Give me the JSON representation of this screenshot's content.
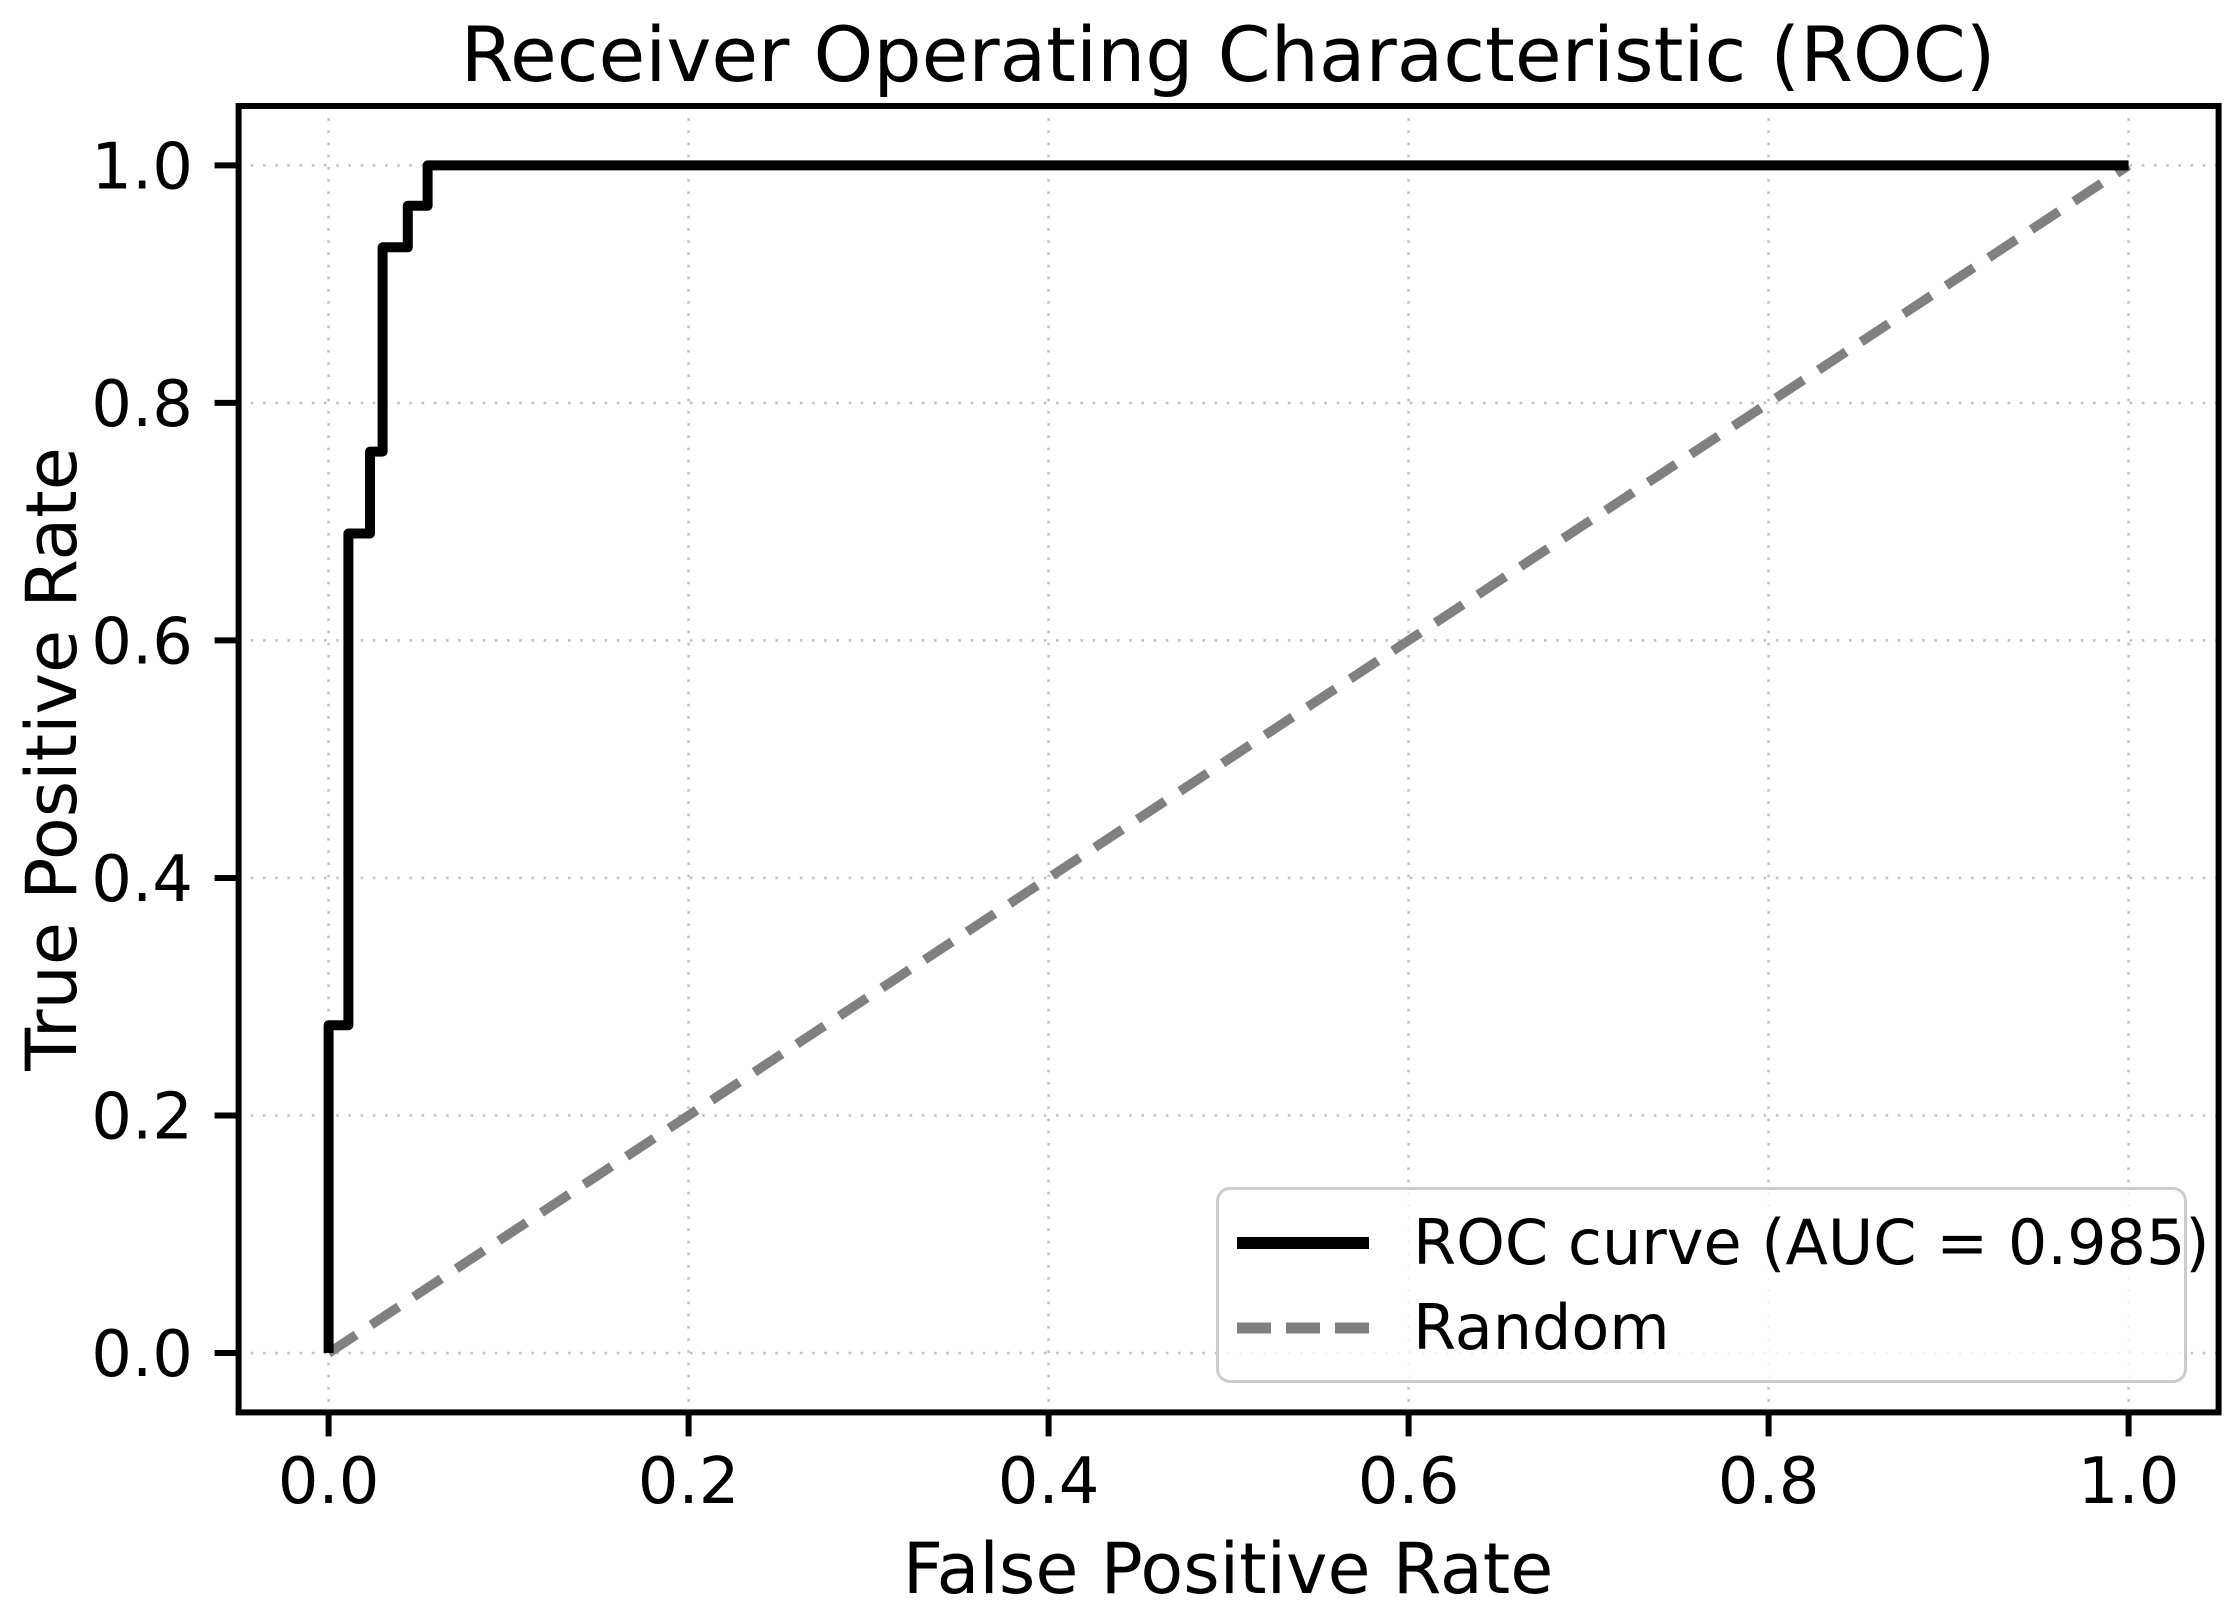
{
  "chart_data": {
    "type": "line",
    "title": "Receiver Operating Characteristic (ROC)",
    "xlabel": "False Positive Rate",
    "ylabel": "True Positive Rate",
    "xlim": [
      -0.05,
      1.05
    ],
    "ylim": [
      -0.05,
      1.05
    ],
    "xticks": [
      0.0,
      0.2,
      0.4,
      0.6,
      0.8,
      1.0
    ],
    "yticks": [
      0.0,
      0.2,
      0.4,
      0.6,
      0.8,
      1.0
    ],
    "xtick_labels": [
      "0.0",
      "0.2",
      "0.4",
      "0.6",
      "0.8",
      "1.0"
    ],
    "ytick_labels": [
      "0.0",
      "0.2",
      "0.4",
      "0.6",
      "0.8",
      "1.0"
    ],
    "grid": {
      "on": true,
      "linestyle": "dotted",
      "color": "#c2c2c2"
    },
    "legend_position": "lower right",
    "series": [
      {
        "name": "ROC curve (AUC = 0.985)",
        "auc": 0.985,
        "color": "#000000",
        "linestyle": "solid",
        "linewidth": 10,
        "x": [
          0.0,
          0.0,
          0.011,
          0.011,
          0.023,
          0.023,
          0.03,
          0.03,
          0.044,
          0.044,
          0.055,
          0.055,
          1.0
        ],
        "y": [
          0.0,
          0.276,
          0.276,
          0.69,
          0.69,
          0.759,
          0.759,
          0.931,
          0.931,
          0.966,
          0.966,
          1.0,
          1.0
        ]
      },
      {
        "name": "Random",
        "color": "#808080",
        "linestyle": "dashed",
        "linewidth": 9.5,
        "x": [
          0.0,
          1.0
        ],
        "y": [
          0.0,
          1.0
        ]
      }
    ]
  }
}
